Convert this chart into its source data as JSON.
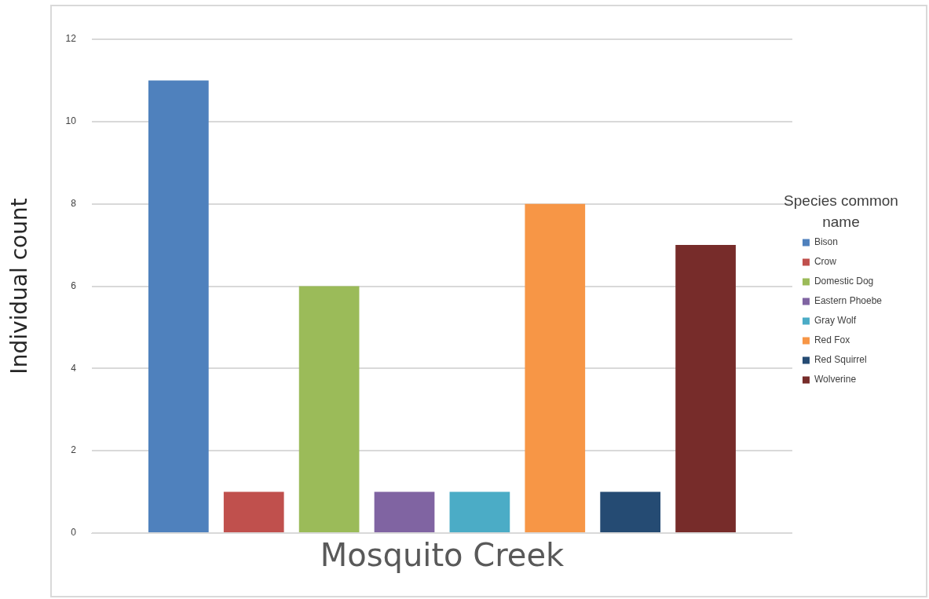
{
  "chart_data": {
    "type": "bar",
    "xlabel": null,
    "ylabel": "Individual count",
    "legend_title": "Species common name",
    "categories": [
      "Mosquito Creek"
    ],
    "series": [
      {
        "name": "Bison",
        "color": "#4f81bd",
        "values": [
          11
        ]
      },
      {
        "name": "Crow",
        "color": "#c0504d",
        "values": [
          1
        ]
      },
      {
        "name": "Domestic Dog",
        "color": "#9bbb59",
        "values": [
          6
        ]
      },
      {
        "name": "Eastern Phoebe",
        "color": "#8064a2",
        "values": [
          1
        ]
      },
      {
        "name": "Gray Wolf",
        "color": "#4bacc6",
        "values": [
          1
        ]
      },
      {
        "name": "Red Fox",
        "color": "#f79646",
        "values": [
          8
        ]
      },
      {
        "name": "Red Squirrel",
        "color": "#254b73",
        "values": [
          1
        ]
      },
      {
        "name": "Wolverine",
        "color": "#772c2a",
        "values": [
          7
        ]
      }
    ],
    "ylim": [
      0,
      12
    ],
    "yticks": [
      0,
      2,
      4,
      6,
      8,
      10,
      12
    ],
    "grid": "y",
    "legend": "right"
  }
}
